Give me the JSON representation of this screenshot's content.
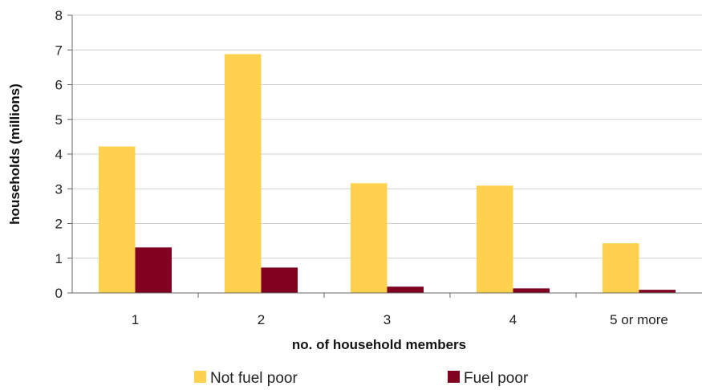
{
  "chart_data": {
    "type": "bar",
    "categories": [
      "1",
      "2",
      "3",
      "4",
      "5 or more"
    ],
    "series": [
      {
        "name": "Not fuel poor",
        "values": [
          4.22,
          6.88,
          3.16,
          3.09,
          1.43
        ],
        "color": "#FFD14D"
      },
      {
        "name": "Fuel poor",
        "values": [
          1.31,
          0.73,
          0.18,
          0.13,
          0.09
        ],
        "color": "#800020"
      }
    ],
    "xlabel": "no. of household members",
    "ylabel": "households (millions)",
    "ylim": [
      0,
      8
    ],
    "yticks": [
      "0",
      "1",
      "2",
      "3",
      "4",
      "5",
      "6",
      "7",
      "8"
    ],
    "grid": true,
    "legend": "bottom"
  }
}
